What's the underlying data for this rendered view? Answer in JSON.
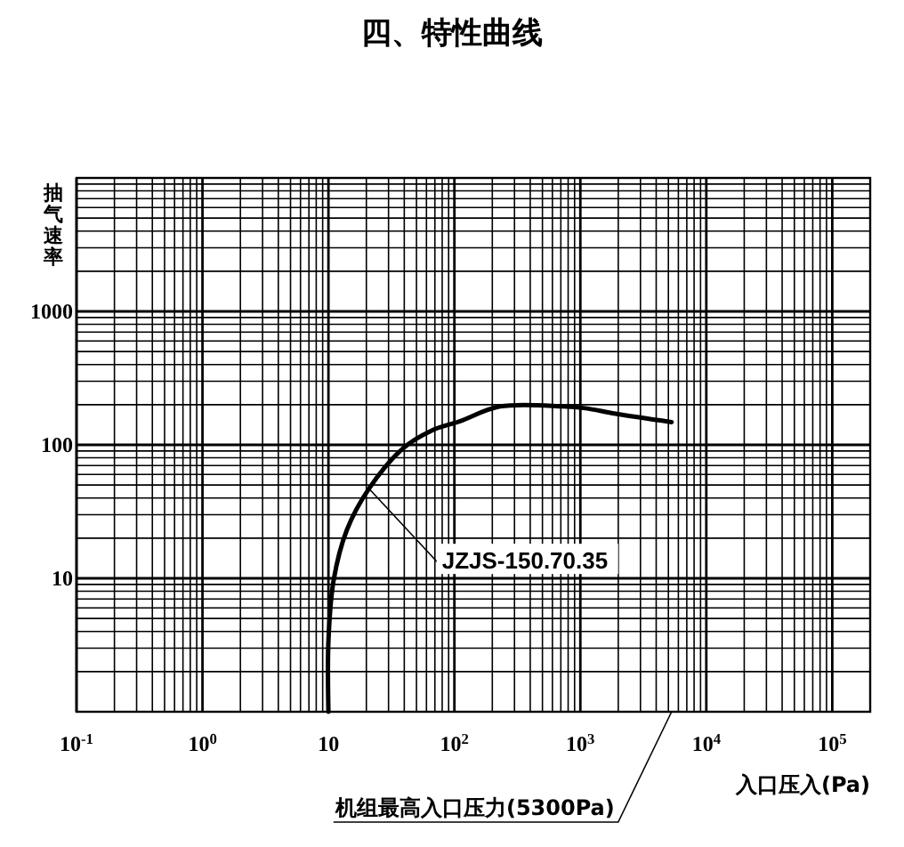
{
  "chart_data": {
    "type": "line",
    "title": "四、特性曲线",
    "xlabel": "入口压入(Pa)",
    "ylabel": "抽气速率",
    "log": "xy",
    "grid": true,
    "marker": "none",
    "line_style": "solid",
    "xlim": [
      0.1,
      200000
    ],
    "ylim": [
      1,
      10000
    ],
    "xticks": [
      {
        "value": 0.1,
        "label": "10$^{-1}$"
      },
      {
        "value": 0.2,
        "label": null
      },
      {
        "value": 0.3,
        "label": null
      },
      {
        "value": 0.4,
        "label": null
      },
      {
        "value": 0.5,
        "label": null
      },
      {
        "value": 0.6,
        "label": null
      },
      {
        "value": 0.7,
        "label": null
      },
      {
        "value": 0.8,
        "label": null
      },
      {
        "value": 0.9,
        "label": null
      },
      {
        "value": 1,
        "label": "10$^{0}$"
      },
      {
        "value": 2,
        "label": null
      },
      {
        "value": 3,
        "label": null
      },
      {
        "value": 4,
        "label": null
      },
      {
        "value": 5,
        "label": null
      },
      {
        "value": 6,
        "label": null
      },
      {
        "value": 7,
        "label": null
      },
      {
        "value": 8,
        "label": null
      },
      {
        "value": 9,
        "label": null
      },
      10,
      {
        "value": 20,
        "label": null
      },
      {
        "value": 30,
        "label": null
      },
      {
        "value": 40,
        "label": null
      },
      {
        "value": 50,
        "label": null
      },
      {
        "value": 60,
        "label": null
      },
      {
        "value": 70,
        "label": null
      },
      {
        "value": 80,
        "label": null
      },
      {
        "value": 90,
        "label": null
      },
      {
        "value": 100,
        "label": "10$^{2}$"
      },
      {
        "value": 200,
        "label": null
      },
      {
        "value": 300,
        "label": null
      },
      {
        "value": 400,
        "label": null
      },
      {
        "value": 500,
        "label": null
      },
      {
        "value": 600,
        "label": null
      },
      {
        "value": 700,
        "label": null
      },
      {
        "value": 800,
        "label": null
      },
      {
        "value": 900,
        "label": null
      },
      {
        "value": 1000,
        "label": "10$^{3}$"
      },
      {
        "value": 2000,
        "label": null
      },
      {
        "value": 3000,
        "label": null
      },
      {
        "value": 4000,
        "label": null
      },
      {
        "value": 5000,
        "label": null
      },
      {
        "value": 6000,
        "label": null
      },
      {
        "value": 7000,
        "label": null
      },
      {
        "value": 8000,
        "label": null
      },
      {
        "value": 9000,
        "label": null
      },
      {
        "value": 10000,
        "label": "10$^{4}$"
      },
      {
        "value": 20000,
        "label": null
      },
      {
        "value": 30000,
        "label": null
      },
      {
        "value": 40000,
        "label": null
      },
      {
        "value": 50000,
        "label": null
      },
      {
        "value": 60000,
        "label": null
      },
      {
        "value": 70000,
        "label": null
      },
      {
        "value": 80000,
        "label": null
      },
      {
        "value": 90000,
        "label": null
      },
      {
        "value": 100000,
        "label": "10$^{5}$"
      }
    ],
    "yticks": [
      {
        "value": 1,
        "label": null
      },
      {
        "value": 2,
        "label": null
      },
      {
        "value": 3,
        "label": null
      },
      {
        "value": 4,
        "label": null
      },
      {
        "value": 5,
        "label": null
      },
      {
        "value": 6,
        "label": null
      },
      {
        "value": 7,
        "label": null
      },
      {
        "value": 8,
        "label": null
      },
      {
        "value": 9,
        "label": null
      },
      10,
      {
        "value": 20,
        "label": null
      },
      {
        "value": 30,
        "label": null
      },
      {
        "value": 40,
        "label": null
      },
      {
        "value": 50,
        "label": null
      },
      {
        "value": 60,
        "label": null
      },
      {
        "value": 70,
        "label": null
      },
      {
        "value": 80,
        "label": null
      },
      {
        "value": 90,
        "label": null
      },
      100,
      {
        "value": 200,
        "label": null
      },
      {
        "value": 300,
        "label": null
      },
      {
        "value": 400,
        "label": null
      },
      {
        "value": 500,
        "label": null
      },
      {
        "value": 600,
        "label": null
      },
      {
        "value": 700,
        "label": null
      },
      {
        "value": 800,
        "label": null
      },
      {
        "value": 900,
        "label": null
      },
      1000,
      {
        "value": 2000,
        "label": null
      },
      {
        "value": 3000,
        "label": null
      },
      {
        "value": 4000,
        "label": null
      },
      {
        "value": 5000,
        "label": null
      },
      {
        "value": 6000,
        "label": null
      },
      {
        "value": 7000,
        "label": null
      },
      {
        "value": 8000,
        "label": null
      },
      {
        "value": 9000,
        "label": null
      },
      {
        "value": 10000,
        "label": null
      }
    ],
    "series": [
      {
        "name": "JZJS-150.70.35",
        "color": "#000000",
        "x": [
          10,
          10,
          11,
          14,
          21,
          39,
          66,
          110,
          230,
          730,
          1100,
          1900,
          5300
        ],
        "values": [
          1,
          3.4,
          9.7,
          23,
          47,
          94,
          128,
          150,
          194,
          194,
          188,
          171,
          148
        ]
      }
    ],
    "annotations": [
      "机组最高入口压力(5300Pa)"
    ]
  }
}
